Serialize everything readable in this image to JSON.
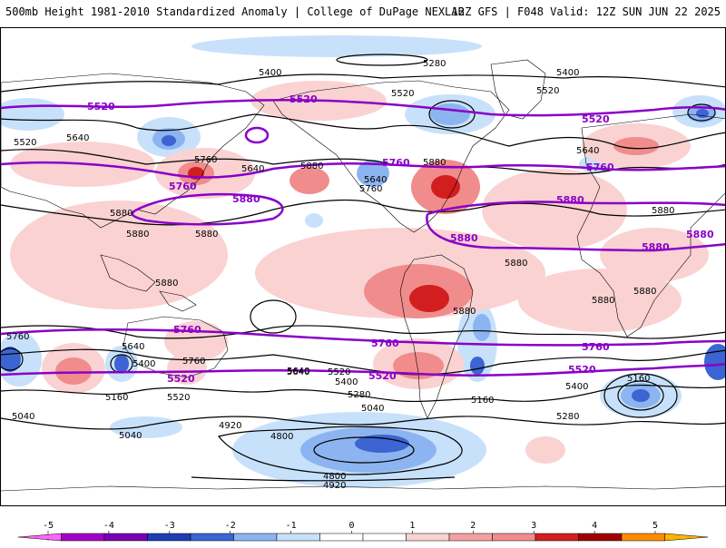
{
  "header": {
    "left_title": "500mb Height 1981-2010 Standardized Anomaly | College of DuPage NEXLAB",
    "right_title": "12Z GFS | F048 Valid: 12Z SUN JUN 22 2025"
  },
  "colors": {
    "purple_contour": "#8a00c8",
    "black_contour": "#000000",
    "neg_light": "#c8e1fb",
    "neg_mid": "#8cb4f0",
    "neg_dark": "#3c64d2",
    "pos_light": "#fad2d2",
    "pos_mid": "#f08c8c",
    "pos_dark": "#d21e1e"
  },
  "contour_labels": {
    "black": [
      "5400",
      "5280",
      "5400",
      "5520",
      "5520",
      "5520",
      "5640",
      "5640",
      "5760",
      "5640",
      "5880",
      "5880",
      "5880",
      "5880",
      "5760",
      "5640",
      "5880",
      "5880",
      "5880",
      "5880",
      "5880",
      "5880",
      "5760",
      "5640",
      "5400",
      "5640",
      "5520",
      "5400",
      "5280",
      "5160",
      "5160",
      "5040",
      "5040",
      "4920",
      "4800",
      "4800",
      "4920",
      "5040",
      "5160",
      "5280",
      "5400",
      "5520",
      "5640",
      "5760",
      "5880"
    ],
    "purple": [
      "5520",
      "5520",
      "5520",
      "5760",
      "5760",
      "5760",
      "5880",
      "5880",
      "5880",
      "5880",
      "5760",
      "5760",
      "5760",
      "5520",
      "5520",
      "5520",
      "5880"
    ]
  },
  "colorbar": {
    "ticks": [
      "-5",
      "-4",
      "-3",
      "-2",
      "-1",
      "0",
      "1",
      "2",
      "3",
      "4",
      "5"
    ],
    "colors": [
      "#ff64ff",
      "#a000c8",
      "#7800b4",
      "#1e3cb4",
      "#3c64d2",
      "#8cb4f0",
      "#c8e1fb",
      "#ffffff",
      "#ffffff",
      "#fad2d2",
      "#f5a0a0",
      "#f08c8c",
      "#d21e1e",
      "#a00000",
      "#ff8c00",
      "#ffb400"
    ]
  }
}
